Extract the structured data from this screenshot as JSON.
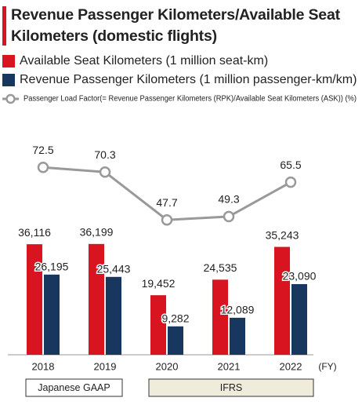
{
  "chart_data": {
    "type": "bar",
    "title": "Revenue Passenger Kilometers/Available Seat Kilometers (domestic flights)",
    "categories": [
      "2018",
      "2019",
      "2020",
      "2021",
      "2022"
    ],
    "x_unit": "(FY)",
    "segments": [
      "Japanese GAAP",
      "IFRS"
    ],
    "ylim": [
      0,
      40000
    ],
    "y2lim": [
      0,
      100
    ],
    "series": [
      {
        "name": "Available Seat Kilometers (1 million seat-km)",
        "type": "bar",
        "color": "#d7141f",
        "values": [
          36116,
          36199,
          19452,
          24535,
          35243
        ],
        "value_labels": [
          "36,116",
          "36,199",
          "19,452",
          "24,535",
          "35,243"
        ]
      },
      {
        "name": "Revenue Passenger Kilometers (1 million passenger-km/km)",
        "type": "bar",
        "color": "#17375e",
        "values": [
          26195,
          25443,
          9282,
          12089,
          23090
        ],
        "value_labels": [
          "26,195",
          "25,443",
          "9,282",
          "12,089",
          "23,090"
        ]
      },
      {
        "name": "Passenger Load Factor(= Revenue Passenger Kilometers (RPK)/Available Seat Kilometers (ASK)) (%)",
        "type": "line",
        "axis": "y2",
        "color": "#999999",
        "values": [
          72.5,
          70.3,
          47.7,
          49.3,
          65.5
        ]
      }
    ]
  }
}
